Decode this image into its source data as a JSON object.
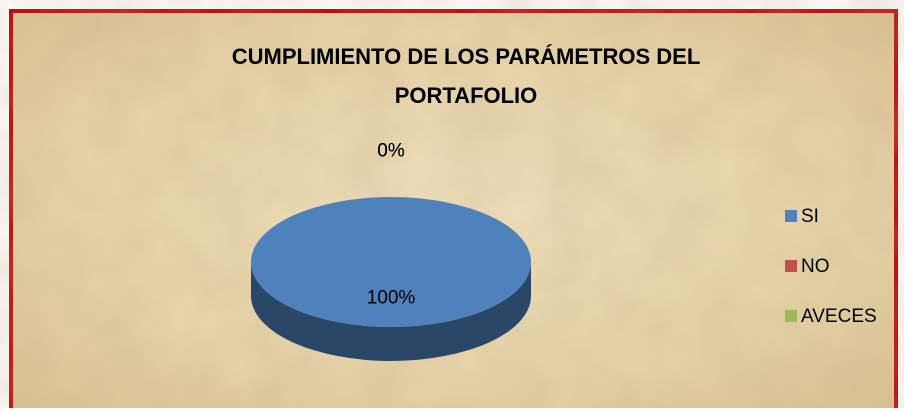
{
  "chart_data": {
    "type": "pie",
    "title": [
      "CUMPLIMIENTO DE LOS PARÁMETROS DEL",
      "PORTAFOLIO"
    ],
    "categories": [
      "SI",
      "NO",
      "AVECES"
    ],
    "values": [
      100,
      0,
      0
    ],
    "value_labels": [
      "100%",
      "0%",
      "0%"
    ],
    "colors": [
      "#4f81bd",
      "#c0504d",
      "#9bbb59"
    ],
    "legend": "right",
    "three_d": true
  }
}
